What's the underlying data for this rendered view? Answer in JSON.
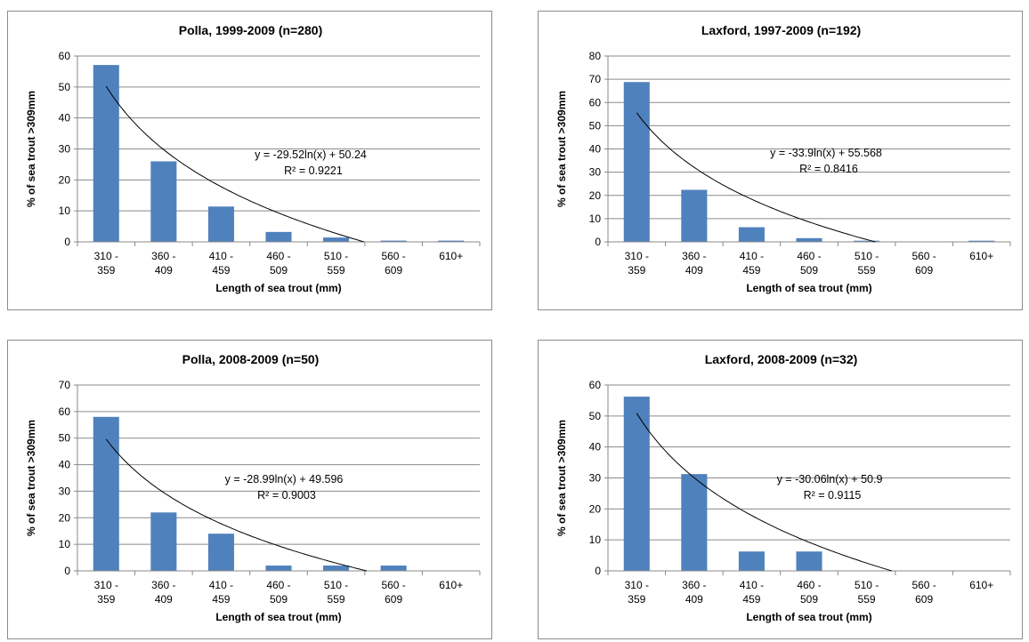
{
  "chart_data": [
    {
      "type": "bar",
      "title": "Polla, 1999-2009 (n=280)",
      "xlabel": "Length of sea trout (mm)",
      "ylabel": "% of sea trout >309mm",
      "categories": [
        [
          "310 -",
          "359"
        ],
        [
          "360 -",
          "409"
        ],
        [
          "410 -",
          "459"
        ],
        [
          "460 -",
          "509"
        ],
        [
          "510 -",
          "559"
        ],
        [
          "560 -",
          "609"
        ],
        [
          "610+"
        ]
      ],
      "values": [
        57.1,
        26.0,
        11.4,
        3.2,
        1.4,
        0.4,
        0.4
      ],
      "ylim": [
        0,
        60
      ],
      "yticks": [
        0,
        10,
        20,
        30,
        40,
        50,
        60
      ],
      "trendline": {
        "type": "log",
        "a": -29.52,
        "b": 50.24,
        "equation": "y = -29.52ln(x) + 50.24",
        "r2": "R² = 0.9221"
      },
      "grid": true,
      "bar_color": "#4f81bd"
    },
    {
      "type": "bar",
      "title": "Laxford, 1997-2009 (n=192)",
      "xlabel": "Length of sea trout (mm)",
      "ylabel": "% of sea trout >309mm",
      "categories": [
        [
          "310 -",
          "359"
        ],
        [
          "360 -",
          "409"
        ],
        [
          "410 -",
          "459"
        ],
        [
          "460 -",
          "509"
        ],
        [
          "510 -",
          "559"
        ],
        [
          "560 -",
          "609"
        ],
        [
          "610+"
        ]
      ],
      "values": [
        68.8,
        22.4,
        6.3,
        1.6,
        0.5,
        0,
        0.5
      ],
      "ylim": [
        0,
        80
      ],
      "yticks": [
        0,
        10,
        20,
        30,
        40,
        50,
        60,
        70,
        80
      ],
      "trendline": {
        "type": "log",
        "a": -33.9,
        "b": 55.568,
        "equation": "y = -33.9ln(x) + 55.568",
        "r2": "R² = 0.8416"
      },
      "grid": true,
      "bar_color": "#4f81bd"
    },
    {
      "type": "bar",
      "title": "Polla, 2008-2009 (n=50)",
      "xlabel": "Length of sea trout (mm)",
      "ylabel": "% of sea trout >309mm",
      "categories": [
        [
          "310 -",
          "359"
        ],
        [
          "360 -",
          "409"
        ],
        [
          "410 -",
          "459"
        ],
        [
          "460 -",
          "509"
        ],
        [
          "510 -",
          "559"
        ],
        [
          "560 -",
          "609"
        ],
        [
          "610+"
        ]
      ],
      "values": [
        58,
        22,
        14,
        2,
        2,
        2,
        0
      ],
      "ylim": [
        0,
        70
      ],
      "yticks": [
        0,
        10,
        20,
        30,
        40,
        50,
        60,
        70
      ],
      "trendline": {
        "type": "log",
        "a": -28.99,
        "b": 49.596,
        "equation": "y = -28.99ln(x) + 49.596",
        "r2": "R² = 0.9003"
      },
      "grid": true,
      "bar_color": "#4f81bd"
    },
    {
      "type": "bar",
      "title": "Laxford, 2008-2009 (n=32)",
      "xlabel": "Length of sea trout (mm)",
      "ylabel": "% of sea trout >309mm",
      "categories": [
        [
          "310 -",
          "359"
        ],
        [
          "360 -",
          "409"
        ],
        [
          "410 -",
          "459"
        ],
        [
          "460 -",
          "509"
        ],
        [
          "510 -",
          "559"
        ],
        [
          "560 -",
          "609"
        ],
        [
          "610+"
        ]
      ],
      "values": [
        56.25,
        31.25,
        6.25,
        6.25,
        0,
        0,
        0
      ],
      "ylim": [
        0,
        60
      ],
      "yticks": [
        0,
        10,
        20,
        30,
        40,
        50,
        60
      ],
      "trendline": {
        "type": "log",
        "a": -30.06,
        "b": 50.9,
        "equation": "y = -30.06ln(x) + 50.9",
        "r2": "R² = 0.9115"
      },
      "grid": true,
      "bar_color": "#4f81bd"
    }
  ]
}
